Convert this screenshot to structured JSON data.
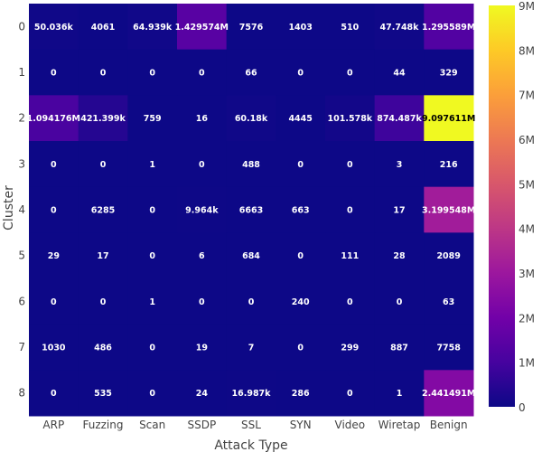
{
  "chart_data": {
    "type": "heatmap",
    "xlabel": "Attack Type",
    "ylabel": "Cluster",
    "x_categories": [
      "ARP",
      "Fuzzing",
      "Scan",
      "SSDP",
      "SSL",
      "SYN",
      "Video",
      "Wiretap",
      "Benign"
    ],
    "y_categories": [
      "0",
      "1",
      "2",
      "3",
      "4",
      "5",
      "6",
      "7",
      "8"
    ],
    "values": [
      [
        50036,
        4061,
        64939,
        1429574,
        7576,
        1403,
        510,
        47748,
        1295589
      ],
      [
        0,
        0,
        0,
        0,
        66,
        0,
        0,
        44,
        329
      ],
      [
        1094176,
        421399,
        759,
        16,
        60180,
        4445,
        101578,
        874487,
        9097611
      ],
      [
        0,
        0,
        1,
        0,
        488,
        0,
        0,
        3,
        216
      ],
      [
        0,
        6285,
        0,
        9964,
        6663,
        663,
        0,
        17,
        3199548
      ],
      [
        29,
        17,
        0,
        6,
        684,
        0,
        111,
        28,
        2089
      ],
      [
        0,
        0,
        1,
        0,
        0,
        240,
        0,
        0,
        63
      ],
      [
        1030,
        486,
        0,
        19,
        7,
        0,
        299,
        887,
        7758
      ],
      [
        0,
        535,
        0,
        24,
        16987,
        286,
        0,
        1,
        2441491
      ]
    ],
    "text": [
      [
        "50.036k",
        "4061",
        "64.939k",
        "1.429574M",
        "7576",
        "1403",
        "510",
        "47.748k",
        "1.295589M"
      ],
      [
        "0",
        "0",
        "0",
        "0",
        "66",
        "0",
        "0",
        "44",
        "329"
      ],
      [
        "1.094176M",
        "421.399k",
        "759",
        "16",
        "60.18k",
        "4445",
        "101.578k",
        "874.487k",
        "9.097611M"
      ],
      [
        "0",
        "0",
        "1",
        "0",
        "488",
        "0",
        "0",
        "3",
        "216"
      ],
      [
        "0",
        "6285",
        "0",
        "9.964k",
        "6663",
        "663",
        "0",
        "17",
        "3.199548M"
      ],
      [
        "29",
        "17",
        "0",
        "6",
        "684",
        "0",
        "111",
        "28",
        "2089"
      ],
      [
        "0",
        "0",
        "1",
        "0",
        "0",
        "240",
        "0",
        "0",
        "63"
      ],
      [
        "1030",
        "486",
        "0",
        "19",
        "7",
        "0",
        "299",
        "887",
        "7758"
      ],
      [
        "0",
        "535",
        "0",
        "24",
        "16.987k",
        "286",
        "0",
        "1",
        "2.441491M"
      ]
    ],
    "zmin": 0,
    "zmax": 9097611,
    "colorscale": "plasma",
    "colorbar": {
      "tickvals": [
        0,
        1000000,
        2000000,
        3000000,
        4000000,
        5000000,
        6000000,
        7000000,
        8000000,
        9000000
      ],
      "ticktext": [
        "0",
        "1M",
        "2M",
        "3M",
        "4M",
        "5M",
        "6M",
        "7M",
        "8M",
        "9M"
      ]
    }
  }
}
